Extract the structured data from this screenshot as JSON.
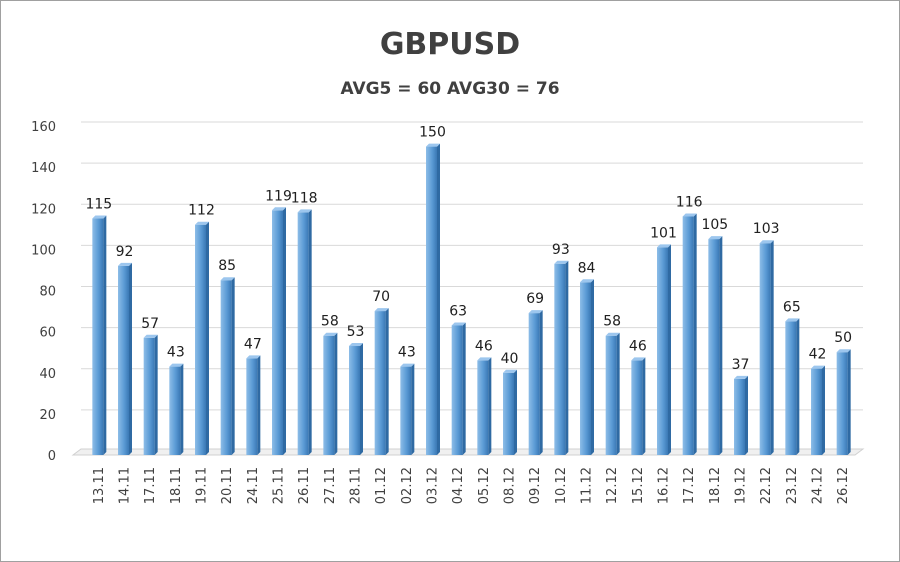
{
  "chart_data": {
    "type": "bar",
    "title": "GBPUSD",
    "subtitle": "AVG5 = 60 AVG30 = 76",
    "xlabel": "",
    "ylabel": "",
    "ylim": [
      0,
      160
    ],
    "yticks": [
      0,
      20,
      40,
      60,
      80,
      100,
      120,
      140,
      160
    ],
    "grid": true,
    "bar_color": "#5b9bd5",
    "categories": [
      "13.11",
      "14.11",
      "17.11",
      "18.11",
      "19.11",
      "20.11",
      "24.11",
      "25.11",
      "26.11",
      "27.11",
      "28.11",
      "01.12",
      "02.12",
      "03.12",
      "04.12",
      "05.12",
      "08.12",
      "09.12",
      "10.12",
      "11.12",
      "12.12",
      "15.12",
      "16.12",
      "17.12",
      "18.12",
      "19.12",
      "22.12",
      "23.12",
      "24.12",
      "26.12"
    ],
    "values": [
      115,
      92,
      57,
      43,
      112,
      85,
      47,
      119,
      118,
      58,
      53,
      70,
      43,
      150,
      63,
      46,
      40,
      69,
      93,
      84,
      58,
      46,
      101,
      116,
      105,
      37,
      103,
      65,
      42,
      50
    ]
  }
}
